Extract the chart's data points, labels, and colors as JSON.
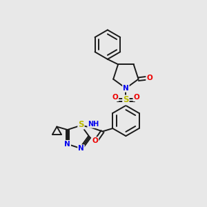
{
  "background_color": "#e8e8e8",
  "bond_color": "#1a1a1a",
  "bond_width": 1.4,
  "atom_colors": {
    "N": "#0000ee",
    "O": "#ee0000",
    "S": "#bbbb00",
    "H": "#5a8080",
    "C": "#1a1a1a"
  },
  "font_size_atom": 7.5,
  "figsize": [
    3.0,
    3.0
  ],
  "dpi": 100
}
